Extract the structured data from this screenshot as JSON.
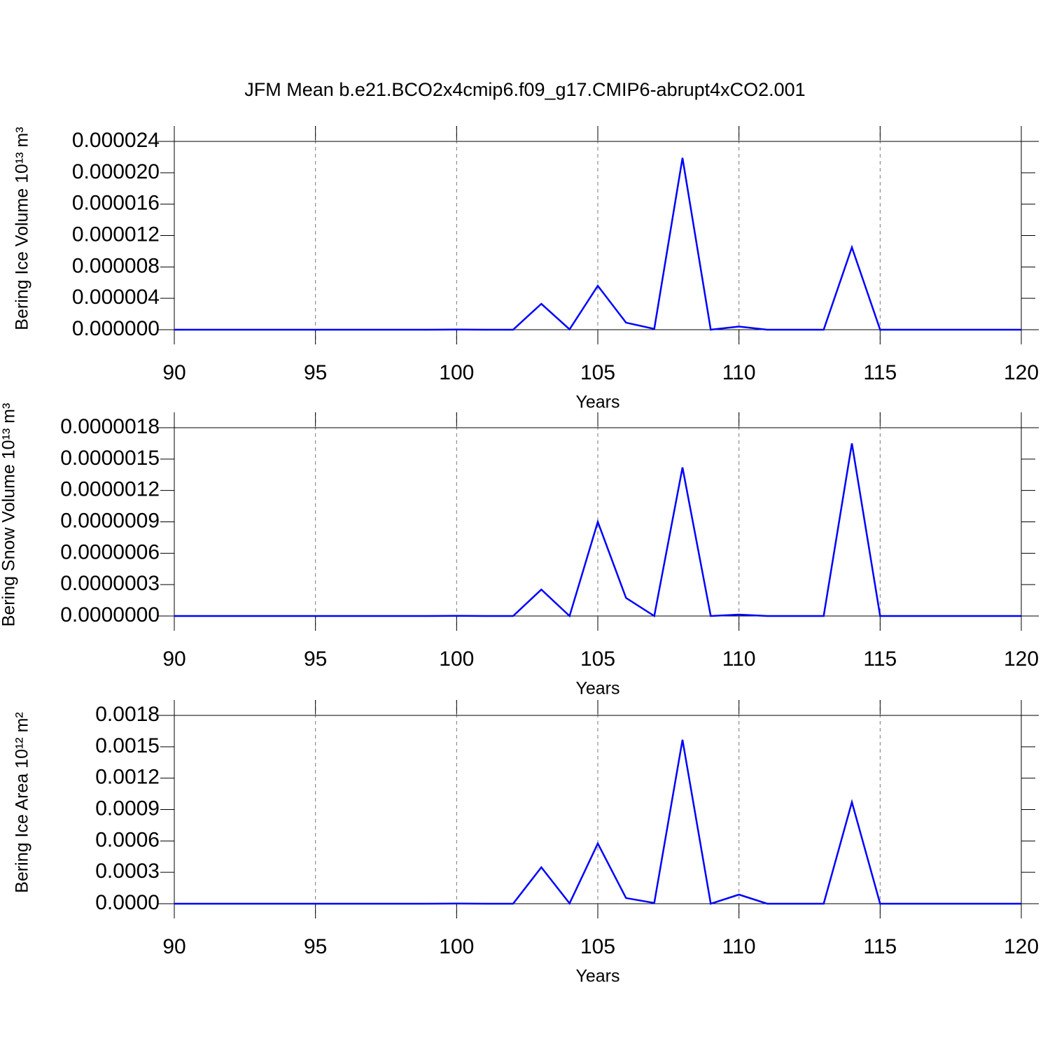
{
  "title": "JFM Mean b.e21.BCO2x4cmip6.f09_g17.CMIP6-abrupt4xCO2.001",
  "chart_data": [
    {
      "type": "line",
      "y_label": "Bering Ice Volume 10¹³ m³",
      "x_label": "Years",
      "x": [
        90,
        91,
        92,
        93,
        94,
        95,
        96,
        97,
        98,
        99,
        100,
        101,
        102,
        103,
        104,
        105,
        106,
        107,
        108,
        109,
        110,
        111,
        112,
        113,
        114,
        115,
        116,
        117,
        118,
        119,
        120
      ],
      "values": [
        0,
        0,
        0,
        0,
        0,
        0,
        0,
        0,
        0,
        0,
        2e-08,
        0,
        0,
        3.3e-06,
        5e-08,
        5.6e-06,
        9e-07,
        1e-07,
        2.19e-05,
        0,
        4e-07,
        0,
        0,
        0,
        1.05e-05,
        0,
        0,
        0,
        0,
        0,
        0
      ],
      "color": "#0000ff",
      "xlim": [
        90,
        120
      ],
      "xticks": [
        90,
        95,
        100,
        105,
        110,
        115,
        120
      ],
      "ylim": [
        0,
        2.4e-05
      ],
      "yticks": [
        {
          "value": 0,
          "label": "0.000000"
        },
        {
          "value": 4e-06,
          "label": "0.000004"
        },
        {
          "value": 8e-06,
          "label": "0.000008"
        },
        {
          "value": 1.2e-05,
          "label": "0.000012"
        },
        {
          "value": 1.6e-05,
          "label": "0.000016"
        },
        {
          "value": 2e-05,
          "label": "0.000020"
        },
        {
          "value": 2.4e-05,
          "label": "0.000024"
        }
      ],
      "x_grid": true
    },
    {
      "type": "line",
      "y_label": "Bering Snow Volume 10¹³ m³",
      "x_label": "Years",
      "x": [
        90,
        91,
        92,
        93,
        94,
        95,
        96,
        97,
        98,
        99,
        100,
        101,
        102,
        103,
        104,
        105,
        106,
        107,
        108,
        109,
        110,
        111,
        112,
        113,
        114,
        115,
        116,
        117,
        118,
        119,
        120
      ],
      "values": [
        0,
        0,
        0,
        0,
        0,
        0,
        0,
        0,
        0,
        0,
        2e-09,
        0,
        0,
        2.53e-07,
        0,
        9e-07,
        1.73e-07,
        0,
        1.42e-06,
        0,
        1.3e-08,
        0,
        0,
        0,
        1.65e-06,
        0,
        0,
        0,
        0,
        0,
        0
      ],
      "color": "#0000ff",
      "xlim": [
        90,
        120
      ],
      "xticks": [
        90,
        95,
        100,
        105,
        110,
        115,
        120
      ],
      "ylim": [
        0,
        1.8e-06
      ],
      "yticks": [
        {
          "value": 0,
          "label": "0.0000000"
        },
        {
          "value": 3e-07,
          "label": "0.0000003"
        },
        {
          "value": 6e-07,
          "label": "0.0000006"
        },
        {
          "value": 9e-07,
          "label": "0.0000009"
        },
        {
          "value": 1.2e-06,
          "label": "0.0000012"
        },
        {
          "value": 1.5e-06,
          "label": "0.0000015"
        },
        {
          "value": 1.8e-06,
          "label": "0.0000018"
        }
      ],
      "x_grid": true
    },
    {
      "type": "line",
      "y_label": "Bering Ice Area 10¹² m²",
      "x_label": "Years",
      "x": [
        90,
        91,
        92,
        93,
        94,
        95,
        96,
        97,
        98,
        99,
        100,
        101,
        102,
        103,
        104,
        105,
        106,
        107,
        108,
        109,
        110,
        111,
        112,
        113,
        114,
        115,
        116,
        117,
        118,
        119,
        120
      ],
      "values": [
        0,
        0,
        0,
        0,
        0,
        0,
        0,
        0,
        0,
        0,
        2e-06,
        0,
        0,
        0.000348,
        3e-06,
        0.000576,
        5.4e-05,
        7e-06,
        0.001567,
        0,
        8.7e-05,
        0,
        0,
        0,
        0.000971,
        0,
        0,
        0,
        0,
        0,
        0
      ],
      "color": "#0000ff",
      "xlim": [
        90,
        120
      ],
      "xticks": [
        90,
        95,
        100,
        105,
        110,
        115,
        120
      ],
      "ylim": [
        0,
        0.0018
      ],
      "yticks": [
        {
          "value": 0,
          "label": "0.0000"
        },
        {
          "value": 0.0003,
          "label": "0.0003"
        },
        {
          "value": 0.0006,
          "label": "0.0006"
        },
        {
          "value": 0.0009,
          "label": "0.0009"
        },
        {
          "value": 0.0012,
          "label": "0.0012"
        },
        {
          "value": 0.0015,
          "label": "0.0015"
        },
        {
          "value": 0.0018,
          "label": "0.0018"
        }
      ],
      "x_grid": true
    }
  ]
}
